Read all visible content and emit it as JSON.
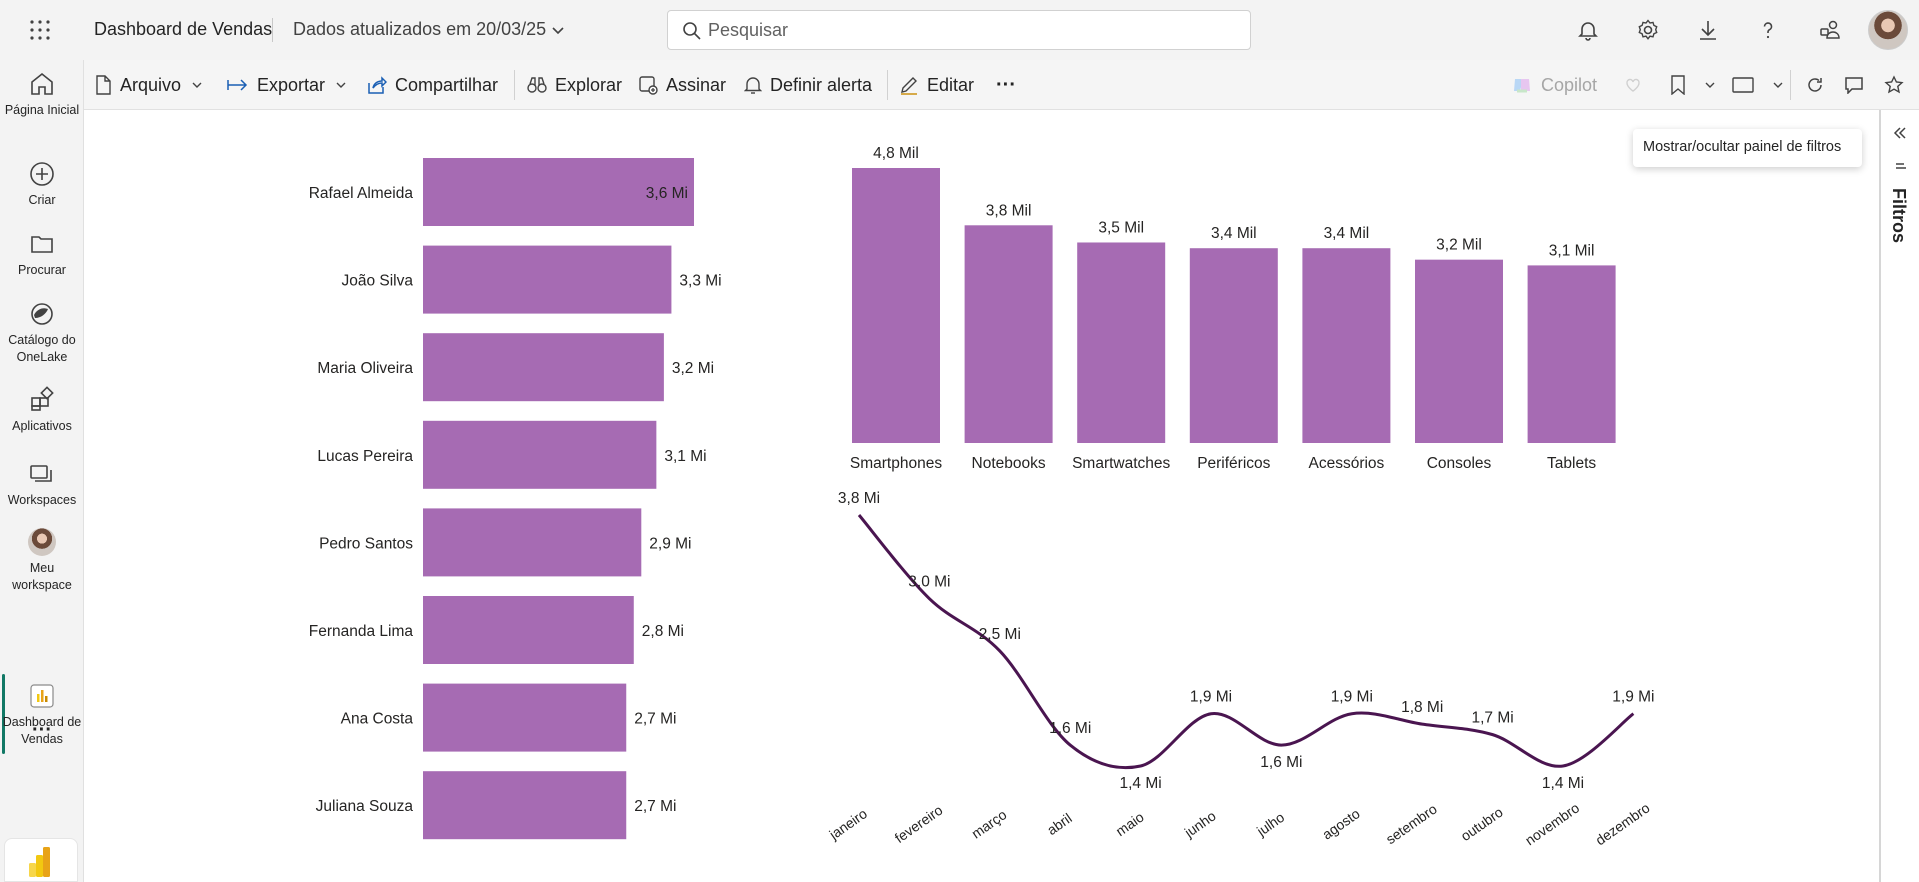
{
  "topbar": {
    "app_title": "Dashboard de Vendas",
    "updated_text": "Dados atualizados em 20/03/25",
    "search_placeholder": "Pesquisar",
    "icons": [
      "waffle-icon",
      "bell-icon",
      "gear-icon",
      "download-icon",
      "help-icon",
      "share-people-icon",
      "avatar"
    ]
  },
  "rail": {
    "items": [
      {
        "label": "Página Inicial",
        "icon": "home-icon"
      },
      {
        "label": "Criar",
        "icon": "plus-circle-icon"
      },
      {
        "label": "Procurar",
        "icon": "folder-icon"
      },
      {
        "label": "Catálogo do OneLake",
        "icon": "onelake-icon"
      },
      {
        "label": "Aplicativos",
        "icon": "apps-icon"
      },
      {
        "label": "Workspaces",
        "icon": "workspaces-icon"
      },
      {
        "label": "Meu workspace",
        "icon": "avatar"
      },
      {
        "label": "Dashboard de Vendas",
        "icon": "report-icon"
      }
    ],
    "more_label": "···"
  },
  "toolbar": {
    "file_label": "Arquivo",
    "export_label": "Exportar",
    "share_label": "Compartilhar",
    "explore_label": "Explorar",
    "subscribe_label": "Assinar",
    "alert_label": "Definir alerta",
    "edit_label": "Editar",
    "more_label": "···",
    "copilot_label": "Copilot"
  },
  "filters": {
    "label": "Filtros",
    "tooltip": "Mostrar/ocultar painel de filtros"
  },
  "chart_data": [
    {
      "type": "bar",
      "orientation": "horizontal",
      "categories": [
        "Rafael Almeida",
        "João Silva",
        "Maria Oliveira",
        "Lucas Pereira",
        "Pedro Santos",
        "Fernanda Lima",
        "Ana Costa",
        "Juliana Souza"
      ],
      "values": [
        3.6,
        3.3,
        3.2,
        3.1,
        2.9,
        2.8,
        2.7,
        2.7
      ],
      "data_labels": [
        "3,6 Mi",
        "3,3 Mi",
        "3,2 Mi",
        "3,1 Mi",
        "2,9 Mi",
        "2,8 Mi",
        "2,7 Mi",
        "2,7 Mi"
      ],
      "unit": "Mi",
      "color": "#a66bb3",
      "xlim": [
        0,
        3.6
      ]
    },
    {
      "type": "bar",
      "orientation": "vertical",
      "categories": [
        "Smartphones",
        "Notebooks",
        "Smartwatches",
        "Periféricos",
        "Acessórios",
        "Consoles",
        "Tablets"
      ],
      "values": [
        4.8,
        3.8,
        3.5,
        3.4,
        3.4,
        3.2,
        3.1
      ],
      "data_labels": [
        "4,8 Mil",
        "3,8 Mil",
        "3,5 Mil",
        "3,4 Mil",
        "3,4 Mil",
        "3,2 Mil",
        "3,1 Mil"
      ],
      "unit": "Mil",
      "color": "#a66bb3",
      "ylim": [
        0,
        4.8
      ]
    },
    {
      "type": "line",
      "x": [
        "janeiro",
        "fevereiro",
        "março",
        "abril",
        "maio",
        "junho",
        "julho",
        "agosto",
        "setembro",
        "outubro",
        "novembro",
        "dezembro"
      ],
      "values": [
        3.8,
        3.0,
        2.5,
        1.6,
        1.4,
        1.9,
        1.6,
        1.9,
        1.8,
        1.7,
        1.4,
        1.9
      ],
      "data_labels": [
        "3,8 Mi",
        "3,0 Mi",
        "2,5 Mi",
        "1,6 Mi",
        "1,4 Mi",
        "1,9 Mi",
        "1,6 Mi",
        "1,9 Mi",
        "1,8 Mi",
        "1,7 Mi",
        "1,4 Mi",
        "1,9 Mi"
      ],
      "unit": "Mi",
      "color": "#4a1550",
      "smooth": true
    }
  ]
}
